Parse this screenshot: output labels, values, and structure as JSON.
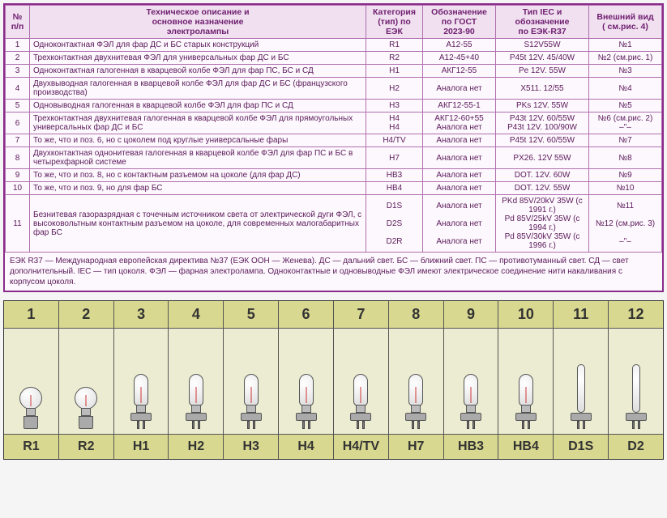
{
  "table": {
    "headers": {
      "num": "№\nп/п",
      "desc": "Техническое описание и\nосновное назначение\nэлектролампы",
      "cat": "Категория\n(тип) по\nЕЭК",
      "gost": "Обозначение\nпо ГОСТ\n2023-90",
      "iec": "Тип IEC и\nобозначение\nпо ЕЭК-R37",
      "view": "Внешний вид\n( см.рис. 4)"
    },
    "rows": [
      {
        "n": "1",
        "desc": "Одноконтактная ФЭЛ для фар ДС и БС старых конструкций",
        "cat": "R1",
        "gost": "А12-55",
        "iec": "S12V55W",
        "view": "№1"
      },
      {
        "n": "2",
        "desc": "Трехконтактная двухнитевая ФЭЛ для универсальных фар ДС и БС",
        "cat": "R2",
        "gost": "А12-45+40",
        "iec": "P45t 12V. 45/40W",
        "view": "№2 (см.рис. 1)"
      },
      {
        "n": "3",
        "desc": "Одноконтактная галогенная в кварцевой колбе ФЭЛ для фар ПС, БС и СД",
        "cat": "H1",
        "gost": "АКГ12-55",
        "iec": "Pe 12V. 55W",
        "view": "№3"
      },
      {
        "n": "4",
        "desc": "Двухвыводная галогенная в кварцевой колбе ФЭЛ для фар ДС и БС (французского производства)",
        "cat": "H2",
        "gost": "Аналога нет",
        "iec": "X511. 12/55",
        "view": "№4"
      },
      {
        "n": "5",
        "desc": "Одновыводная галогенная в кварцевой колбе ФЭЛ для фар ПС и СД",
        "cat": "H3",
        "gost": "АКГ12-55-1",
        "iec": "PKs 12V. 55W",
        "view": "№5"
      },
      {
        "n": "6",
        "desc": "Трехконтактная двухнитевая галогенная в кварцевой колбе ФЭЛ для прямоугольных универсальных фар ДС и БС",
        "cat": "H4\nH4",
        "gost": "АКГ12-60+55\nАналога нет",
        "iec": "P43t 12V. 60/55W\nP43t 12V. 100/90W",
        "view": "№6 (см.рис. 2)\n–\"–"
      },
      {
        "n": "7",
        "desc": "То же, что и поз. 6, но с цоколем под круглые универсальные фары",
        "cat": "H4/TV",
        "gost": "Аналога нет",
        "iec": "P45t 12V. 60/55W",
        "view": "№7"
      },
      {
        "n": "8",
        "desc": "Двухконтактная однонитевая галогенная в кварцевой колбе ФЭЛ для фар ПС и БС в четырехфарной системе",
        "cat": "H7",
        "gost": "Аналога нет",
        "iec": "PX26. 12V 55W",
        "view": "№8"
      },
      {
        "n": "9",
        "desc": "То же, что и поз. 8, но с контактным разъемом на цоколе (для фар ДС)",
        "cat": "HB3",
        "gost": "Аналога нет",
        "iec": "DOT. 12V. 60W",
        "view": "№9"
      },
      {
        "n": "10",
        "desc": "То же, что и поз. 9, но для фар БС",
        "cat": "HB4",
        "gost": "Аналога нет",
        "iec": "DOT. 12V. 55W",
        "view": "№10"
      },
      {
        "n": "11",
        "desc": "Безнитевая газоразрядная с точечным источником света от электрической дуги ФЭЛ, с высоковольтным контактным разъемом на цоколе, для современных малогабаритных фар БС",
        "cat": "D1S\n\nD2S\n\nD2R",
        "gost": "Аналога нет\n\nАналога нет\n\nАналога нет",
        "iec": "PKd 85V/20kV 35W (с 1991 г.)\nPd 85V/25kV 35W (с 1994 г.)\nPd 85V/30kV 35W (с 1996 г.)",
        "view": "№11\n\n№12 (см.рис. 3)\n\n–\"–"
      }
    ],
    "footnote": "ЕЭК R37 — Международная европейская директива №37 (ЕЭК ООН — Женева). ДС — дальний свет. БС — ближний свет. ПС — противотуманный свет. СД — свет дополнительный. IEC — тип цоколя. ФЭЛ — фарная электролампа. Одноконтактные и одновыводные ФЭЛ имеют электрическое соединение нити накаливания с корпусом цоколя."
  },
  "figure": {
    "columns": [
      {
        "num": "1",
        "code": "R1",
        "shape": "round"
      },
      {
        "num": "2",
        "code": "R2",
        "shape": "round"
      },
      {
        "num": "3",
        "code": "H1",
        "shape": "tube"
      },
      {
        "num": "4",
        "code": "H2",
        "shape": "tube"
      },
      {
        "num": "5",
        "code": "H3",
        "shape": "tube"
      },
      {
        "num": "6",
        "code": "H4",
        "shape": "tube"
      },
      {
        "num": "7",
        "code": "H4/TV",
        "shape": "tube"
      },
      {
        "num": "8",
        "code": "H7",
        "shape": "tube"
      },
      {
        "num": "9",
        "code": "HB3",
        "shape": "tube"
      },
      {
        "num": "10",
        "code": "HB4",
        "shape": "tube"
      },
      {
        "num": "11",
        "code": "D1S",
        "shape": "long"
      },
      {
        "num": "12",
        "code": "D2",
        "shape": "long"
      }
    ]
  },
  "colors": {
    "border_main": "#8a2a8a",
    "cell_border": "#b070b0",
    "header_bg": "#f0e0f0",
    "row_bg": "#fdf8fd",
    "text": "#5a1a5a",
    "fig_bg": "#e8e8c8",
    "fig_band": "#d8d890"
  }
}
